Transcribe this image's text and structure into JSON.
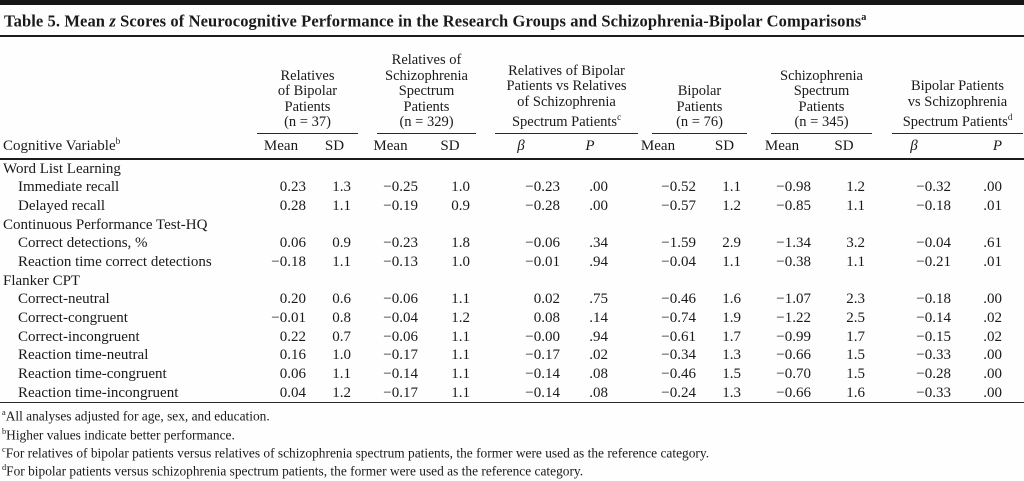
{
  "table": {
    "title": {
      "prefix": "Table 5. Mean ",
      "italic": "z",
      "suffix": " Scores of Neurocognitive Performance in the Research Groups and Schizophrenia-Bipolar Comparisons",
      "sup": "a"
    },
    "row_header": {
      "label": "Cognitive Variable",
      "sup": "b"
    },
    "col_groups": [
      {
        "lines": [
          "Relatives",
          "of Bipolar",
          "Patients",
          "(n = 37)"
        ],
        "sup": "",
        "cols": [
          "Mean",
          "SD"
        ]
      },
      {
        "lines": [
          "Relatives of",
          "Schizophrenia",
          "Spectrum",
          "Patients",
          "(n = 329)"
        ],
        "sup": "",
        "cols": [
          "Mean",
          "SD"
        ]
      },
      {
        "lines": [
          "Relatives of Bipolar",
          "Patients vs Relatives",
          "of Schizophrenia",
          "Spectrum Patients"
        ],
        "sup": "c",
        "cols": [
          "β",
          "P"
        ]
      },
      {
        "lines": [
          "Bipolar",
          "Patients",
          "(n = 76)"
        ],
        "sup": "",
        "cols": [
          "Mean",
          "SD"
        ]
      },
      {
        "lines": [
          "Schizophrenia",
          "Spectrum",
          "Patients",
          "(n = 345)"
        ],
        "sup": "",
        "cols": [
          "Mean",
          "SD"
        ]
      },
      {
        "lines": [
          "Bipolar Patients",
          "vs Schizophrenia",
          "Spectrum Patients"
        ],
        "sup": "d",
        "cols": [
          "β",
          "P"
        ]
      }
    ],
    "rows": [
      {
        "type": "section",
        "label": "Word List Learning",
        "values": [
          "",
          "",
          "",
          "",
          "",
          "",
          "",
          "",
          "",
          "",
          "",
          ""
        ]
      },
      {
        "type": "item",
        "label": "Immediate recall",
        "values": [
          "0.23",
          "1.3",
          "−0.25",
          "1.0",
          "−0.23",
          ".00",
          "−0.52",
          "1.1",
          "−0.98",
          "1.2",
          "−0.32",
          ".00"
        ]
      },
      {
        "type": "item",
        "label": "Delayed recall",
        "values": [
          "0.28",
          "1.1",
          "−0.19",
          "0.9",
          "−0.28",
          ".00",
          "−0.57",
          "1.2",
          "−0.85",
          "1.1",
          "−0.18",
          ".01"
        ]
      },
      {
        "type": "section",
        "label": "Continuous Performance Test-HQ",
        "values": [
          "",
          "",
          "",
          "",
          "",
          "",
          "",
          "",
          "",
          "",
          "",
          ""
        ]
      },
      {
        "type": "item",
        "label": "Correct detections, %",
        "values": [
          "0.06",
          "0.9",
          "−0.23",
          "1.8",
          "−0.06",
          ".34",
          "−1.59",
          "2.9",
          "−1.34",
          "3.2",
          "−0.04",
          ".61"
        ]
      },
      {
        "type": "item",
        "label": "Reaction time correct detections",
        "values": [
          "−0.18",
          "1.1",
          "−0.13",
          "1.0",
          "−0.01",
          ".94",
          "−0.04",
          "1.1",
          "−0.38",
          "1.1",
          "−0.21",
          ".01"
        ]
      },
      {
        "type": "section",
        "label": "Flanker CPT",
        "values": [
          "",
          "",
          "",
          "",
          "",
          "",
          "",
          "",
          "",
          "",
          "",
          ""
        ]
      },
      {
        "type": "item",
        "label": "Correct-neutral",
        "values": [
          "0.20",
          "0.6",
          "−0.06",
          "1.1",
          "0.02",
          ".75",
          "−0.46",
          "1.6",
          "−1.07",
          "2.3",
          "−0.18",
          ".00"
        ]
      },
      {
        "type": "item",
        "label": "Correct-congruent",
        "values": [
          "−0.01",
          "0.8",
          "−0.04",
          "1.2",
          "0.08",
          ".14",
          "−0.74",
          "1.9",
          "−1.22",
          "2.5",
          "−0.14",
          ".02"
        ]
      },
      {
        "type": "item",
        "label": "Correct-incongruent",
        "values": [
          "0.22",
          "0.7",
          "−0.06",
          "1.1",
          "−0.00",
          ".94",
          "−0.61",
          "1.7",
          "−0.99",
          "1.7",
          "−0.15",
          ".02"
        ]
      },
      {
        "type": "item",
        "label": "Reaction time-neutral",
        "values": [
          "0.16",
          "1.0",
          "−0.17",
          "1.1",
          "−0.17",
          ".02",
          "−0.34",
          "1.3",
          "−0.66",
          "1.5",
          "−0.33",
          ".00"
        ]
      },
      {
        "type": "item",
        "label": "Reaction time-congruent",
        "values": [
          "0.06",
          "1.1",
          "−0.14",
          "1.1",
          "−0.14",
          ".08",
          "−0.46",
          "1.5",
          "−0.70",
          "1.5",
          "−0.28",
          ".00"
        ]
      },
      {
        "type": "item",
        "label": "Reaction time-incongruent",
        "values": [
          "0.04",
          "1.2",
          "−0.17",
          "1.1",
          "−0.14",
          ".08",
          "−0.24",
          "1.3",
          "−0.66",
          "1.6",
          "−0.33",
          ".00"
        ]
      }
    ],
    "footnotes": [
      {
        "sup": "a",
        "text": "All analyses adjusted for age, sex, and education."
      },
      {
        "sup": "b",
        "text": "Higher values indicate better performance."
      },
      {
        "sup": "c",
        "text": "For relatives of bipolar patients versus relatives of schizophrenia spectrum patients, the former were used as the reference category."
      },
      {
        "sup": "d",
        "text": "For bipolar patients versus schizophrenia spectrum patients, the former were used as the reference category."
      }
    ],
    "colors": {
      "text": "#1a1a1a",
      "rule": "#2a2a2a",
      "background": "#fefefe"
    }
  }
}
